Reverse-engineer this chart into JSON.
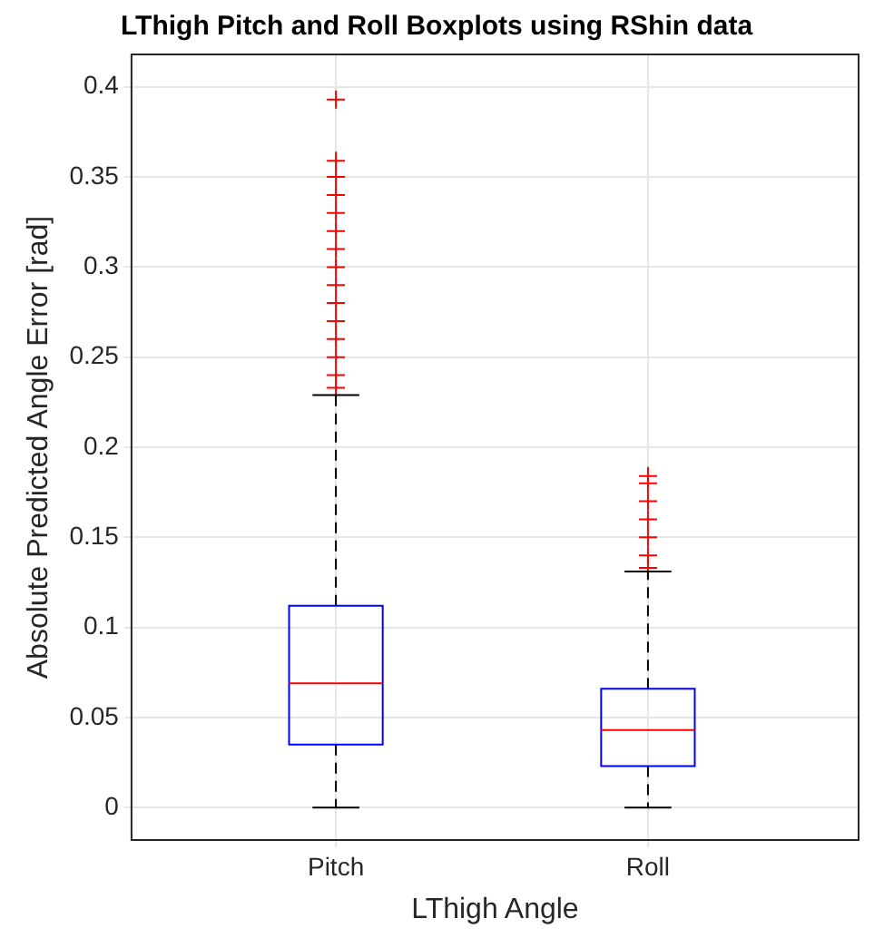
{
  "chart_data": {
    "type": "box",
    "title": "LThigh Pitch and Roll Boxplots using RShin data",
    "xlabel": "LThigh Angle",
    "ylabel": "Absolute Predicted Angle Error [rad]",
    "categories": [
      "Pitch",
      "Roll"
    ],
    "series": [
      {
        "color": "#0000ff",
        "boxes": [
          {
            "low": 0,
            "q1": 0.035,
            "median": 0.069,
            "q3": 0.112,
            "high": 0.229,
            "outliers": [
              0.233,
              0.24,
              0.25,
              0.26,
              0.27,
              0.28,
              0.29,
              0.3,
              0.31,
              0.32,
              0.33,
              0.34,
              0.35,
              0.359,
              0.393
            ]
          },
          {
            "low": 0,
            "q1": 0.023,
            "median": 0.043,
            "q3": 0.066,
            "high": 0.131,
            "outliers": [
              0.133,
              0.14,
              0.15,
              0.16,
              0.17,
              0.18,
              0.184
            ]
          }
        ]
      }
    ],
    "ylim": [
      -0.018,
      0.418
    ],
    "yticks": [
      0,
      0.05,
      0.1,
      0.15,
      0.2,
      0.25,
      0.3,
      0.35,
      0.4
    ],
    "grid": true,
    "marker": "cross"
  }
}
